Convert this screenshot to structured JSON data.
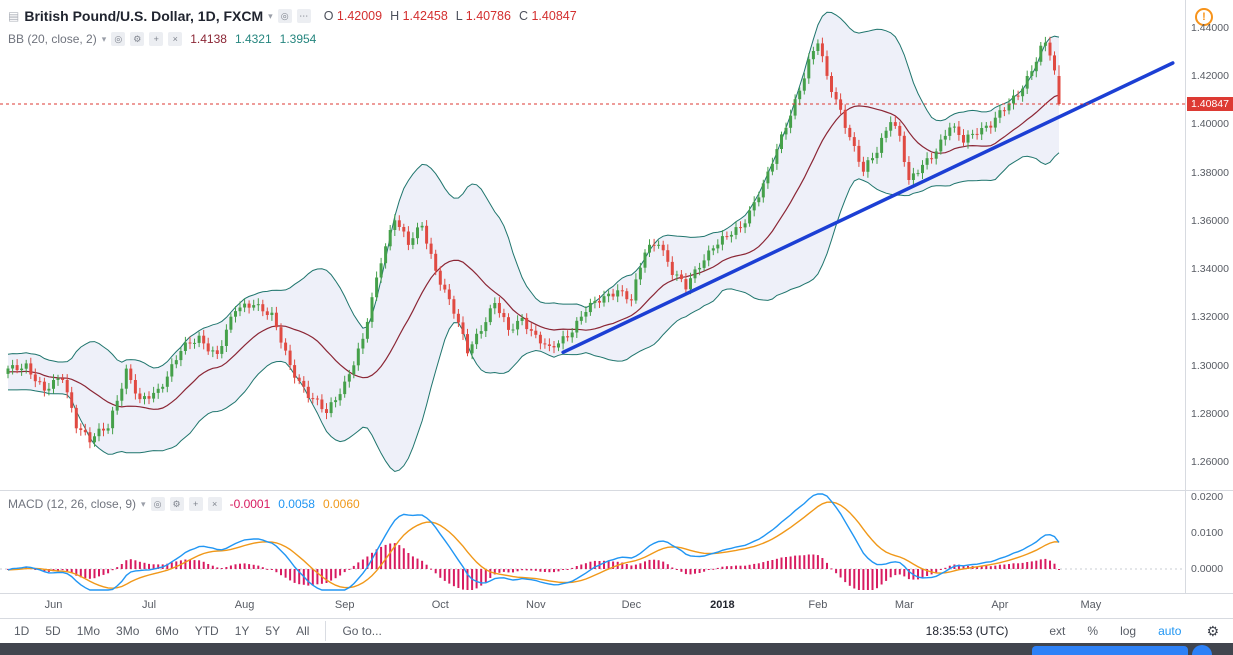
{
  "header": {
    "symbol_menu_icon": "▤",
    "title": "British Pound/U.S. Dollar, 1D, FXCM",
    "ohlc": {
      "o_label": "O",
      "o_value": "1.42009",
      "h_label": "H",
      "h_value": "1.42458",
      "l_label": "L",
      "l_value": "1.40786",
      "c_label": "C",
      "c_value": "1.40847"
    },
    "ohlc_color": "#d32f2f",
    "alert_icon": "!"
  },
  "icons": {
    "caret": "▾",
    "eye": "◎",
    "gear": "⚙",
    "plus": "+",
    "close": "×",
    "more": "⋯",
    "settings_gear": "⚙"
  },
  "bb_legend": {
    "label": "BB (20, close, 2)",
    "basis_value": "1.4138",
    "upper_value": "1.4321",
    "lower_value": "1.3954",
    "basis_color": "#8b2635",
    "band_value_color": "#26867f"
  },
  "macd_legend": {
    "label": "MACD (12, 26, close, 9)",
    "hist_value": "-0.0001",
    "macd_value": "0.0058",
    "signal_value": "0.0060",
    "hist_color": "#d81b60",
    "macd_color": "#2196f3",
    "signal_color": "#f09819"
  },
  "price_axis": {
    "labels": [
      "1.44000",
      "1.42000",
      "1.40000",
      "1.38000",
      "1.36000",
      "1.34000",
      "1.32000",
      "1.30000",
      "1.28000",
      "1.26000"
    ],
    "values": [
      1.44,
      1.42,
      1.4,
      1.38,
      1.36,
      1.34,
      1.32,
      1.3,
      1.28,
      1.26
    ],
    "last_price_label": "1.40847",
    "last_price_value": 1.40847,
    "tag_color": "#dd3a33"
  },
  "macd_axis": {
    "labels": [
      "0.0200",
      "0.0100",
      "0.0000"
    ],
    "values": [
      0.02,
      0.01,
      0.0
    ]
  },
  "time_axis": {
    "labels": [
      {
        "text": "Jun",
        "bar": 10
      },
      {
        "text": "Jul",
        "bar": 31
      },
      {
        "text": "Aug",
        "bar": 52
      },
      {
        "text": "Sep",
        "bar": 74
      },
      {
        "text": "Oct",
        "bar": 95
      },
      {
        "text": "Nov",
        "bar": 116
      },
      {
        "text": "Dec",
        "bar": 137
      },
      {
        "text": "2018",
        "bar": 157,
        "year": true
      },
      {
        "text": "Feb",
        "bar": 178
      },
      {
        "text": "Mar",
        "bar": 197
      },
      {
        "text": "Apr",
        "bar": 218
      },
      {
        "text": "May",
        "bar": 238
      }
    ]
  },
  "toolbar": {
    "ranges": [
      "1D",
      "5D",
      "1Mo",
      "3Mo",
      "6Mo",
      "YTD",
      "1Y",
      "5Y",
      "All"
    ],
    "goto_label": "Go to...",
    "clock": "18:35:53 (UTC)",
    "scale_items": [
      {
        "text": "ext",
        "active": false
      },
      {
        "text": "%",
        "active": false
      },
      {
        "text": "log",
        "active": false
      },
      {
        "text": "auto",
        "active": true
      }
    ],
    "active_color": "#2196f3"
  },
  "chart_data": {
    "type": "candlestick",
    "title": "British Pound/U.S. Dollar, 1D, FXCM",
    "symbol": "GBP/USD",
    "interval": "1D",
    "exchange": "FXCM",
    "visible_range": {
      "start": "Jun 2017",
      "end": "May 2018"
    },
    "y_axis": {
      "min": 1.26,
      "max": 1.44,
      "tick": 0.02
    },
    "last_bar": {
      "open": 1.42009,
      "high": 1.42458,
      "low": 1.40786,
      "close": 1.40847
    },
    "last_price": 1.40847,
    "bars_rendered": 232,
    "close_keyframes": [
      [
        -20,
        1.296
      ],
      [
        -12,
        1.303
      ],
      [
        -6,
        1.291
      ],
      [
        0,
        1.298
      ],
      [
        4,
        1.3005
      ],
      [
        8,
        1.289
      ],
      [
        12,
        1.2955
      ],
      [
        15,
        1.276
      ],
      [
        18,
        1.2685
      ],
      [
        22,
        1.275
      ],
      [
        26,
        1.298
      ],
      [
        29,
        1.2845
      ],
      [
        33,
        1.29
      ],
      [
        38,
        1.306
      ],
      [
        42,
        1.3115
      ],
      [
        46,
        1.3045
      ],
      [
        50,
        1.323
      ],
      [
        54,
        1.3265
      ],
      [
        58,
        1.32
      ],
      [
        62,
        1.3
      ],
      [
        66,
        1.288
      ],
      [
        70,
        1.28
      ],
      [
        74,
        1.293
      ],
      [
        78,
        1.31
      ],
      [
        82,
        1.344
      ],
      [
        85,
        1.362
      ],
      [
        88,
        1.35
      ],
      [
        91,
        1.358
      ],
      [
        94,
        1.34
      ],
      [
        98,
        1.322
      ],
      [
        101,
        1.306
      ],
      [
        104,
        1.316
      ],
      [
        107,
        1.326
      ],
      [
        110,
        1.314
      ],
      [
        113,
        1.32
      ],
      [
        116,
        1.312
      ],
      [
        119,
        1.306
      ],
      [
        123,
        1.313
      ],
      [
        127,
        1.323
      ],
      [
        131,
        1.328
      ],
      [
        134,
        1.332
      ],
      [
        137,
        1.327
      ],
      [
        140,
        1.347
      ],
      [
        143,
        1.352
      ],
      [
        146,
        1.339
      ],
      [
        149,
        1.332
      ],
      [
        152,
        1.342
      ],
      [
        155,
        1.35
      ],
      [
        158,
        1.353
      ],
      [
        161,
        1.357
      ],
      [
        164,
        1.368
      ],
      [
        167,
        1.379
      ],
      [
        170,
        1.394
      ],
      [
        173,
        1.41
      ],
      [
        176,
        1.426
      ],
      [
        178,
        1.434
      ],
      [
        180,
        1.419
      ],
      [
        183,
        1.406
      ],
      [
        186,
        1.39
      ],
      [
        188,
        1.38
      ],
      [
        191,
        1.389
      ],
      [
        194,
        1.403
      ],
      [
        196,
        1.395
      ],
      [
        198,
        1.3755
      ],
      [
        201,
        1.383
      ],
      [
        204,
        1.39
      ],
      [
        207,
        1.399
      ],
      [
        210,
        1.393
      ],
      [
        213,
        1.398
      ],
      [
        216,
        1.4
      ],
      [
        219,
        1.406
      ],
      [
        222,
        1.413
      ],
      [
        225,
        1.423
      ],
      [
        227,
        1.431
      ],
      [
        228,
        1.433
      ],
      [
        229,
        1.429
      ],
      [
        230,
        1.421
      ],
      [
        231,
        1.40847
      ]
    ],
    "indicators": {
      "bollinger": {
        "length": 20,
        "source": "close",
        "stdev": 2,
        "basis": 1.4138,
        "upper": 1.4321,
        "lower": 1.3954
      },
      "macd": {
        "fast": 12,
        "slow": 26,
        "source": "close",
        "smoothing": 9,
        "histogram": -0.0001,
        "macd": 0.0058,
        "signal": 0.006
      },
      "macd_scale_labels": [
        0.02,
        0.01,
        0.0
      ]
    },
    "drawings": {
      "trend_line": {
        "from_bar": 122,
        "from_price": 1.3055,
        "to_bar": 256,
        "to_price": 1.4255
      }
    },
    "colors": {
      "up": "#45a04a",
      "down": "#e04a42",
      "bb_band": "#1f756d",
      "bb_fill": "rgba(90,110,200,0.10)",
      "bb_basis": "#8b2635",
      "macd_line": "#2196f3",
      "signal_line": "#f09819",
      "histogram": "#d81b60",
      "trend_line": "#1c3fd4",
      "price_line": "#dd3a33"
    }
  }
}
